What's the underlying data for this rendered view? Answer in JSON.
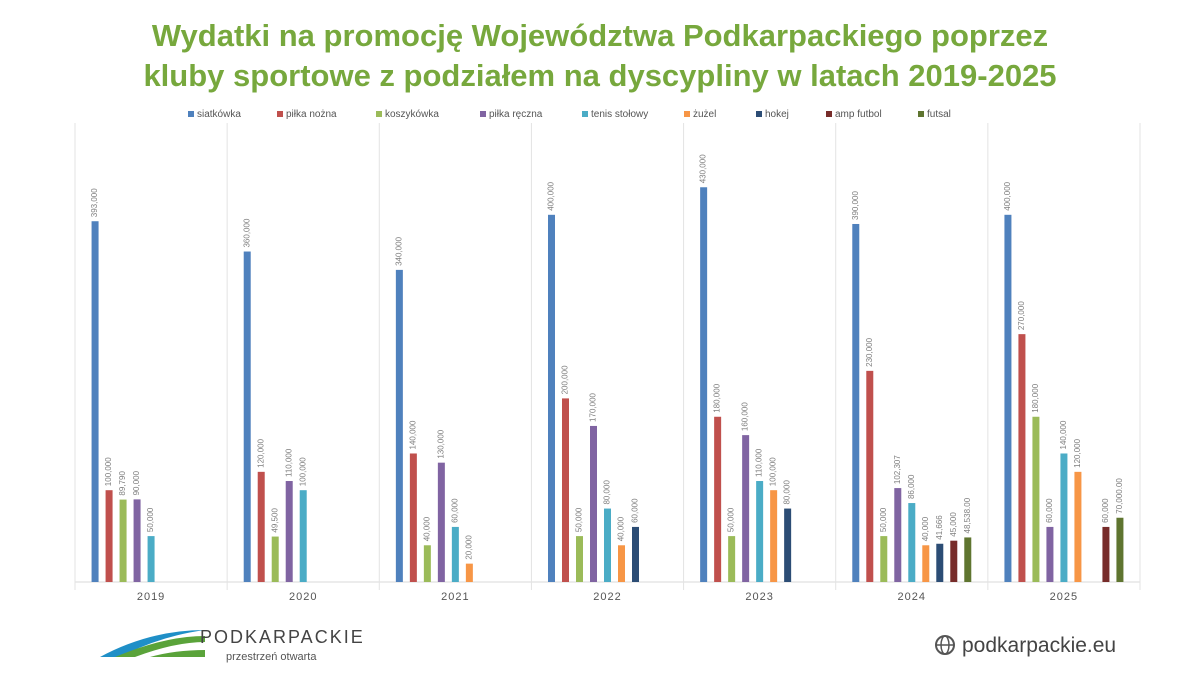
{
  "chart_data": {
    "type": "bar",
    "title": [
      "Wydatki na promocję Województwa Podkarpackiego poprzez",
      "kluby sportowe z podziałem na dyscypliny w latach 2019-2025"
    ],
    "categories": [
      "2019",
      "2020",
      "2021",
      "2022",
      "2023",
      "2024",
      "2025"
    ],
    "ylim": [
      0,
      500000
    ],
    "series": [
      {
        "name": "siatkówka",
        "color": "#4f81bd",
        "values": [
          393000,
          360000,
          340000,
          400000,
          430000,
          390000,
          400000
        ],
        "value_labels": [
          "393,000",
          "360,000",
          "340,000",
          "400,000",
          "430,000",
          "390,000",
          "400,000"
        ]
      },
      {
        "name": "piłka nożna",
        "color": "#c0504d",
        "values": [
          100000,
          120000,
          140000,
          200000,
          180000,
          230000,
          270000
        ],
        "value_labels": [
          "100,000",
          "120,000",
          "140,000",
          "200,000",
          "180,000",
          "230,000",
          "270,000"
        ]
      },
      {
        "name": "koszykówka",
        "color": "#9bbb59",
        "values": [
          89790,
          49500,
          40000,
          50000,
          50000,
          50000,
          180000
        ],
        "value_labels": [
          "89,790",
          "49,500",
          "40,000",
          "50,000",
          "50,000",
          "50,000",
          "180,000"
        ]
      },
      {
        "name": "piłka ręczna",
        "color": "#8064a2",
        "values": [
          90000,
          110000,
          130000,
          170000,
          160000,
          102307,
          60000
        ],
        "value_labels": [
          "90,000",
          "110,000",
          "130,000",
          "170,000",
          "160,000",
          "102,307",
          "60,000"
        ]
      },
      {
        "name": "tenis stołowy",
        "color": "#4bacc6",
        "values": [
          50000,
          100000,
          60000,
          80000,
          110000,
          86000,
          140000
        ],
        "value_labels": [
          "50,000",
          "100,000",
          "60,000",
          "80,000",
          "110,000",
          "86,000",
          "140,000"
        ]
      },
      {
        "name": "żużel",
        "color": "#f79646",
        "values": [
          null,
          null,
          20000,
          40000,
          100000,
          40000,
          120000
        ],
        "value_labels": [
          null,
          null,
          "20,000",
          "40,000",
          "100,000",
          "40,000",
          "120,000"
        ]
      },
      {
        "name": "hokej",
        "color": "#2c4d75",
        "values": [
          null,
          null,
          null,
          60000,
          80000,
          41666,
          null
        ],
        "value_labels": [
          null,
          null,
          null,
          "60,000",
          "80,000",
          "41,666",
          null
        ]
      },
      {
        "name": "amp futbol",
        "color": "#772c2a",
        "values": [
          null,
          null,
          null,
          null,
          null,
          45000,
          60000
        ],
        "value_labels": [
          null,
          null,
          null,
          null,
          null,
          "45,000",
          "60,000"
        ]
      },
      {
        "name": "futsal",
        "color": "#5f7530",
        "values": [
          null,
          null,
          null,
          null,
          null,
          48538,
          70000
        ],
        "value_labels": [
          null,
          null,
          null,
          null,
          null,
          "48,538.00",
          "70,000.00"
        ]
      }
    ]
  },
  "footer": {
    "logo_name": "PODKARPACKIE",
    "logo_tagline": "przestrzeń otwarta",
    "website": "podkarpackie.eu"
  }
}
